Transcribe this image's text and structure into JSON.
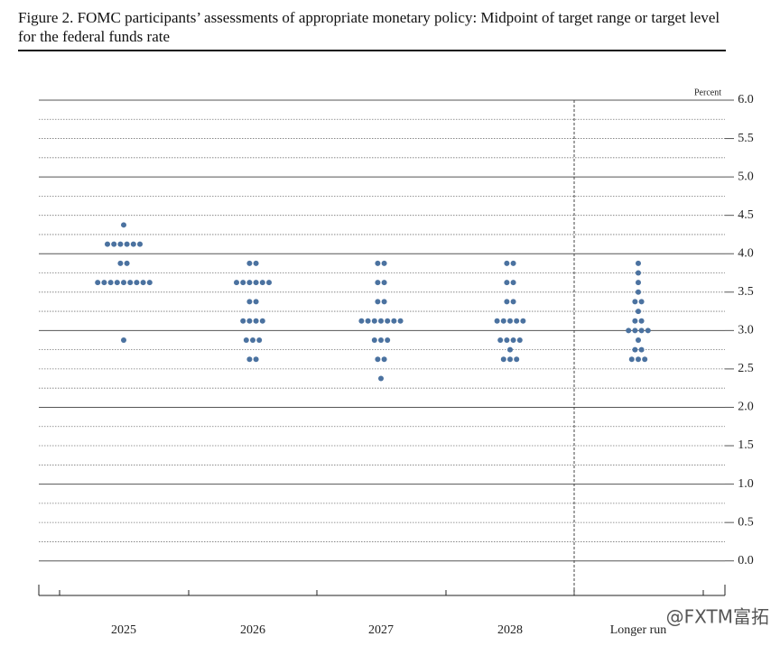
{
  "chart_data": {
    "type": "dot",
    "title": "Figure 2. FOMC participants’ assessments of appropriate monetary policy: Midpoint of target range or target level for the federal funds rate",
    "y_axis_label": "Percent",
    "categories": [
      "2025",
      "2026",
      "2027",
      "2028",
      "Longer run"
    ],
    "dots": [
      {
        "levels": [
          4.375,
          4.125,
          3.875,
          3.625,
          2.875
        ],
        "counts": [
          1,
          6,
          2,
          9,
          1
        ]
      },
      {
        "levels": [
          3.875,
          3.625,
          3.375,
          3.125,
          2.875,
          2.625
        ],
        "counts": [
          2,
          6,
          2,
          4,
          3,
          2
        ]
      },
      {
        "levels": [
          3.875,
          3.625,
          3.375,
          3.125,
          2.875,
          2.625,
          2.375
        ],
        "counts": [
          2,
          2,
          2,
          7,
          3,
          2,
          1
        ]
      },
      {
        "levels": [
          3.875,
          3.625,
          3.375,
          3.125,
          2.875,
          2.75,
          2.625
        ],
        "counts": [
          2,
          2,
          2,
          5,
          4,
          1,
          3
        ]
      },
      {
        "levels": [
          3.875,
          3.75,
          3.625,
          3.5,
          3.375,
          3.25,
          3.125,
          3.0,
          2.875,
          2.75,
          2.625
        ],
        "counts": [
          1,
          1,
          1,
          1,
          2,
          1,
          2,
          4,
          1,
          2,
          3
        ]
      }
    ],
    "color": "#4b72a0",
    "ylim": [
      -0.45,
      6.0
    ],
    "yticks": [
      {
        "value": 0,
        "label": "0.0"
      },
      0.5,
      {
        "value": 1,
        "label": "1.0"
      },
      1.5,
      {
        "value": 2,
        "label": "2.0"
      },
      2.5,
      {
        "value": 3,
        "label": "3.0"
      },
      3.5,
      {
        "value": 4,
        "label": "4.0"
      },
      4.5,
      {
        "value": 5,
        "label": "5.0"
      },
      5.5,
      {
        "value": 6,
        "label": "6.0"
      }
    ],
    "grid": true,
    "watermark": "@FXTM富拓"
  }
}
